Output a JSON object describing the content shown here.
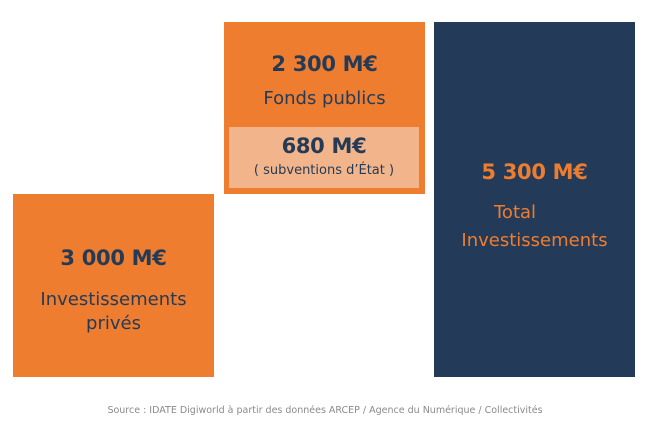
{
  "private": {
    "amount": "3 000 M€",
    "label": "Investissements privés"
  },
  "public": {
    "amount": "2 300 M€",
    "label": "Fonds publics",
    "subsidy": {
      "amount": "680 M€",
      "label": "( subventions d’État )"
    }
  },
  "total": {
    "amount": "5 300 M€",
    "label_line1": "Total",
    "label_line2": "Investissements"
  },
  "source": "Source : IDATE Digiworld à partir des données ARCEP / Agence du Numérique / Collectivités",
  "colors": {
    "orange": "#ee7d30",
    "navy": "#233b58",
    "light_orange": "#f2b48a",
    "text_dark": "#253b55"
  }
}
